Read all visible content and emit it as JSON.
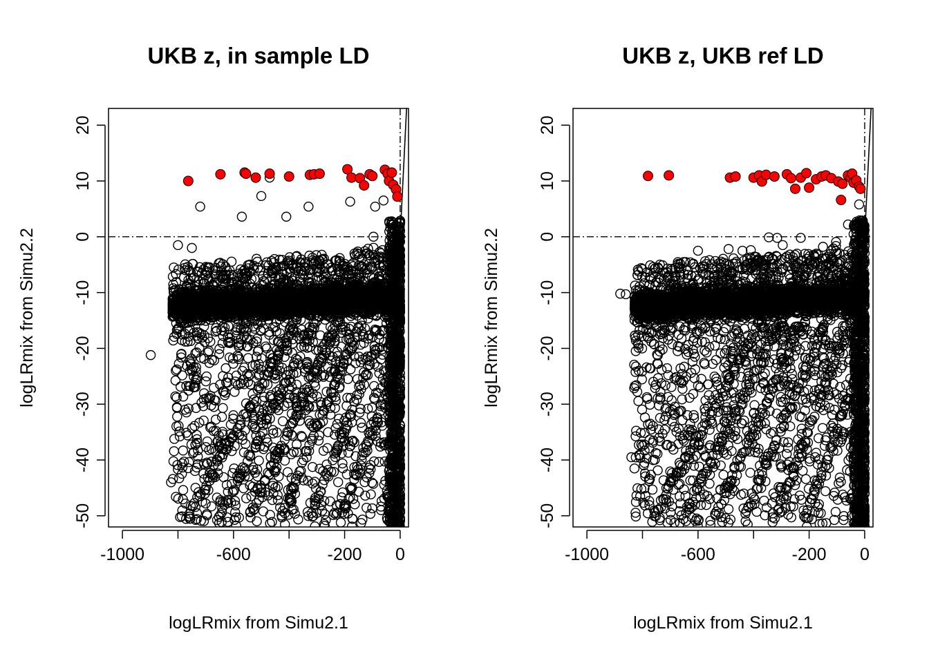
{
  "chart_data": [
    {
      "type": "scatter",
      "title": "UKB z, in sample LD",
      "xlabel": "logLRmix from Simu2.1",
      "ylabel": "logLRmix from Simu2.2",
      "xlim": [
        -1050,
        30
      ],
      "ylim": [
        -52,
        23
      ],
      "x_ticks": [
        "-1000",
        "-600",
        "-200",
        "0"
      ],
      "x_tick_values": [
        -1000,
        -800,
        -600,
        -400,
        -200,
        0
      ],
      "y_ticks": [
        "-50",
        "-40",
        "-30",
        "-20",
        "-10",
        "0",
        "10",
        "20"
      ],
      "y_tick_values": [
        -50,
        -40,
        -30,
        -20,
        -10,
        0,
        10,
        20
      ],
      "reference_lines": {
        "hline_y": 0,
        "vline_x": 0,
        "identity_line": true
      },
      "colors": {
        "points": "#000000",
        "highlight": "#ff0000"
      },
      "highlighted_points": [
        {
          "x": -763,
          "y": 10.0
        },
        {
          "x": -647,
          "y": 11.2
        },
        {
          "x": -560,
          "y": 11.5
        },
        {
          "x": -555,
          "y": 11.3
        },
        {
          "x": -520,
          "y": 10.6
        },
        {
          "x": -470,
          "y": 11.3
        },
        {
          "x": -400,
          "y": 10.8
        },
        {
          "x": -325,
          "y": 11.1
        },
        {
          "x": -310,
          "y": 11.2
        },
        {
          "x": -290,
          "y": 11.3
        },
        {
          "x": -190,
          "y": 12.1
        },
        {
          "x": -175,
          "y": 10.6
        },
        {
          "x": -145,
          "y": 10.5
        },
        {
          "x": -130,
          "y": 9.2
        },
        {
          "x": -110,
          "y": 11.2
        },
        {
          "x": -100,
          "y": 10.9
        },
        {
          "x": -55,
          "y": 12.0
        },
        {
          "x": -45,
          "y": 11.3
        },
        {
          "x": -40,
          "y": 10.0
        },
        {
          "x": -30,
          "y": 11.5
        },
        {
          "x": -25,
          "y": 9.3
        },
        {
          "x": -15,
          "y": 8.5
        },
        {
          "x": -10,
          "y": 7.2
        }
      ],
      "sparse_points": [
        {
          "x": -898,
          "y": -21.2
        },
        {
          "x": -825,
          "y": -44.0
        },
        {
          "x": -720,
          "y": 5.4
        },
        {
          "x": -570,
          "y": 3.6
        },
        {
          "x": -500,
          "y": 7.3
        },
        {
          "x": -470,
          "y": 10.6
        },
        {
          "x": -330,
          "y": 5.4
        },
        {
          "x": -180,
          "y": 6.3
        },
        {
          "x": -90,
          "y": 5.4
        },
        {
          "x": -60,
          "y": 6.5
        },
        {
          "x": -410,
          "y": 3.6
        },
        {
          "x": -750,
          "y": -2.0
        },
        {
          "x": -800,
          "y": -1.5
        },
        {
          "x": -815,
          "y": -5.5
        }
      ]
    },
    {
      "type": "scatter",
      "title": "UKB z, UKB ref LD",
      "xlabel": "logLRmix from Simu2.1",
      "ylabel": "logLRmix from Simu2.2",
      "xlim": [
        -1050,
        30
      ],
      "ylim": [
        -52,
        23
      ],
      "x_ticks": [
        "-1000",
        "-600",
        "-200",
        "0"
      ],
      "x_tick_values": [
        -1000,
        -800,
        -600,
        -400,
        -200,
        0
      ],
      "y_ticks": [
        "-50",
        "-40",
        "-30",
        "-20",
        "-10",
        "0",
        "10",
        "20"
      ],
      "y_tick_values": [
        -50,
        -40,
        -30,
        -20,
        -10,
        0,
        10,
        20
      ],
      "reference_lines": {
        "hline_y": 0,
        "vline_x": 0,
        "identity_line": true
      },
      "colors": {
        "points": "#000000",
        "highlight": "#ff0000"
      },
      "highlighted_points": [
        {
          "x": -780,
          "y": 10.9
        },
        {
          "x": -705,
          "y": 11.0
        },
        {
          "x": -485,
          "y": 10.6
        },
        {
          "x": -465,
          "y": 10.8
        },
        {
          "x": -400,
          "y": 10.6
        },
        {
          "x": -380,
          "y": 11.0
        },
        {
          "x": -370,
          "y": 9.9
        },
        {
          "x": -355,
          "y": 11.1
        },
        {
          "x": -325,
          "y": 10.8
        },
        {
          "x": -280,
          "y": 11.2
        },
        {
          "x": -265,
          "y": 10.5
        },
        {
          "x": -250,
          "y": 8.6
        },
        {
          "x": -230,
          "y": 10.6
        },
        {
          "x": -210,
          "y": 11.4
        },
        {
          "x": -200,
          "y": 8.8
        },
        {
          "x": -175,
          "y": 10.3
        },
        {
          "x": -155,
          "y": 10.8
        },
        {
          "x": -140,
          "y": 11.0
        },
        {
          "x": -120,
          "y": 10.5
        },
        {
          "x": -95,
          "y": 9.9
        },
        {
          "x": -80,
          "y": 9.5
        },
        {
          "x": -60,
          "y": 11.0
        },
        {
          "x": -50,
          "y": 10.6
        },
        {
          "x": -45,
          "y": 11.3
        },
        {
          "x": -40,
          "y": 9.7
        },
        {
          "x": -30,
          "y": 10.1
        },
        {
          "x": -20,
          "y": 9.0
        },
        {
          "x": -15,
          "y": 8.6
        },
        {
          "x": -85,
          "y": 6.6
        }
      ],
      "sparse_points": [
        {
          "x": -880,
          "y": -10.2
        },
        {
          "x": -860,
          "y": -10.3
        },
        {
          "x": -840,
          "y": -39.5
        },
        {
          "x": -810,
          "y": -39.2
        },
        {
          "x": -600,
          "y": -2.5
        },
        {
          "x": -490,
          "y": -2.2
        },
        {
          "x": -440,
          "y": -2.5
        },
        {
          "x": -410,
          "y": -2.4
        },
        {
          "x": -345,
          "y": -0.1
        },
        {
          "x": -315,
          "y": -0.2
        },
        {
          "x": -295,
          "y": -1.5
        },
        {
          "x": -230,
          "y": -0.2
        },
        {
          "x": -150,
          "y": -1.8
        },
        {
          "x": -60,
          "y": 2.2
        },
        {
          "x": -20,
          "y": 5.8
        },
        {
          "x": -665,
          "y": -51.3
        },
        {
          "x": -605,
          "y": -50.5
        },
        {
          "x": -490,
          "y": -48.8
        }
      ]
    }
  ]
}
